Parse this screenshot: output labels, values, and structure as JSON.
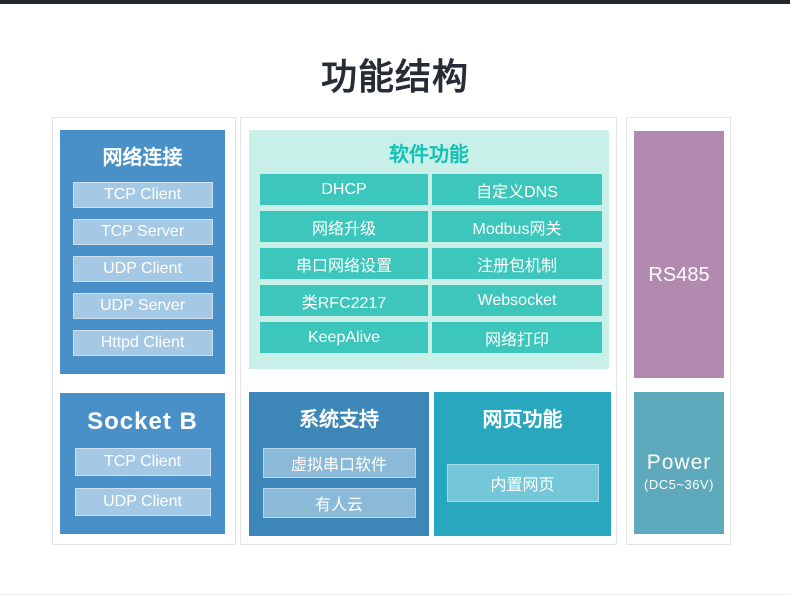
{
  "header": {
    "title": "功能结构",
    "top_bar_color": "#20282e"
  },
  "left_panel": {
    "network_box": {
      "title": "网络连接",
      "items": [
        "TCP Client",
        "TCP Server",
        "UDP Client",
        "UDP Server",
        "Httpd Client"
      ]
    },
    "socket_box": {
      "title": "Socket B",
      "items": [
        "TCP Client",
        "UDP Client"
      ]
    }
  },
  "middle_panel": {
    "software_box": {
      "title": "软件功能",
      "cells": [
        "DHCP",
        "自定义DNS",
        "网络升级",
        "Modbus网关",
        "串口网络设置",
        "注册包机制",
        "类RFC2217",
        "Websocket",
        "KeepAlive",
        "网络打印"
      ]
    },
    "system_box": {
      "title": "系统支持",
      "items": [
        "虚拟串口软件",
        "有人云"
      ]
    },
    "web_box": {
      "title": "网页功能",
      "items": [
        "内置网页"
      ]
    }
  },
  "right_panel": {
    "rs485_box": {
      "label": "RS485"
    },
    "power_box": {
      "label": "Power",
      "sublabel": "(DC5~36V)"
    }
  },
  "colors": {
    "top_bar": "#20282e",
    "title_text": "#262d36",
    "panel_border": "#e4e4e4",
    "blue": "#4a90c8",
    "blue_light": "#a5c9e4",
    "system_blue": "#3c87b8",
    "system_blue_light": "#8abad8",
    "mint_bg": "#c8f0e9",
    "teal_cell": "#3dc6bc",
    "teal_title_text": "#13c2b2",
    "web_teal": "#29a7be",
    "web_teal_light": "#74c7d9",
    "purple": "#b28aaf",
    "power_teal": "#5ea9bc"
  }
}
